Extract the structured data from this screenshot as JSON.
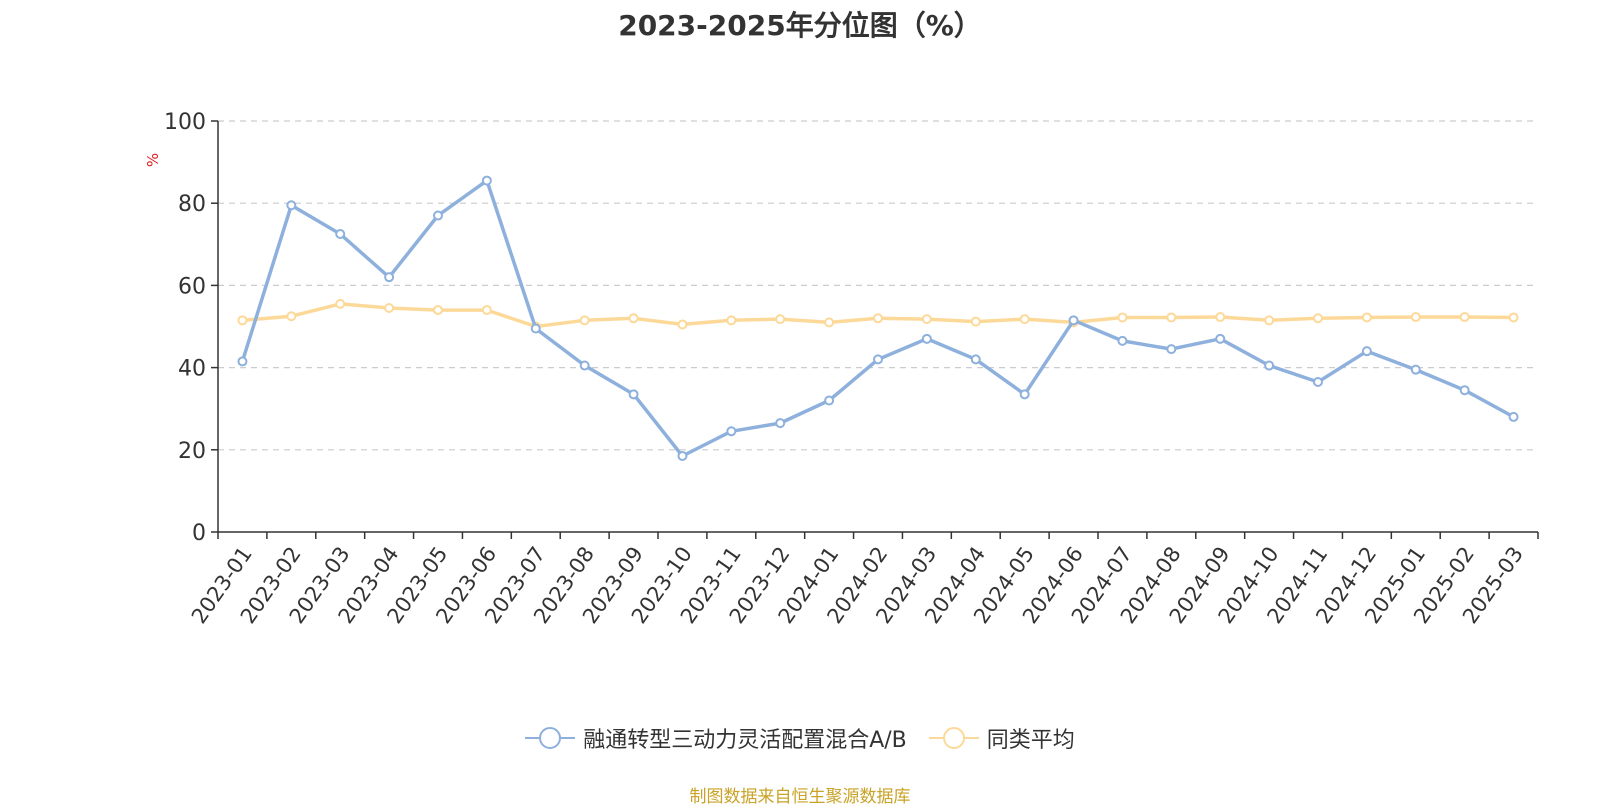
{
  "title": "2023-2025年分位图（%）",
  "source_note": "制图数据来自恒生聚源数据库",
  "colors": {
    "series1": "#8eb0dc",
    "series2": "#fdd999",
    "unit_label": "#e02020",
    "source_note": "#c9a227",
    "axis": "#333333",
    "grid": "#cccccc"
  },
  "chart_data": {
    "type": "line",
    "title": "2023-2025年分位图（%）",
    "ylabel": "%",
    "ylim": [
      0,
      100
    ],
    "yticks": [
      0,
      20,
      40,
      60,
      80,
      100
    ],
    "grid": "horizontal dashed",
    "legend_position": "bottom-center",
    "x": [
      "2023-01",
      "2023-02",
      "2023-03",
      "2023-04",
      "2023-05",
      "2023-06",
      "2023-07",
      "2023-08",
      "2023-09",
      "2023-10",
      "2023-11",
      "2023-12",
      "2024-01",
      "2024-02",
      "2024-03",
      "2024-04",
      "2024-05",
      "2024-06",
      "2024-07",
      "2024-08",
      "2024-09",
      "2024-10",
      "2024-11",
      "2024-12",
      "2025-01",
      "2025-02",
      "2025-03"
    ],
    "series": [
      {
        "name": "融通转型三动力灵活配置混合A/B",
        "values": [
          41.5,
          79.5,
          72.5,
          62.0,
          77.0,
          85.5,
          49.5,
          40.5,
          33.5,
          18.5,
          24.5,
          26.5,
          32.0,
          42.0,
          47.0,
          42.0,
          33.5,
          51.5,
          46.5,
          44.5,
          47.0,
          40.5,
          36.5,
          44.0,
          39.5,
          34.5,
          28.0
        ]
      },
      {
        "name": "同类平均",
        "values": [
          51.5,
          52.5,
          55.5,
          54.5,
          54.0,
          54.0,
          50.0,
          51.5,
          52.0,
          50.5,
          51.5,
          51.8,
          51.0,
          52.0,
          51.8,
          51.2,
          51.8,
          51.0,
          52.2,
          52.2,
          52.3,
          51.5,
          52.0,
          52.2,
          52.3,
          52.3,
          52.2
        ]
      }
    ]
  }
}
